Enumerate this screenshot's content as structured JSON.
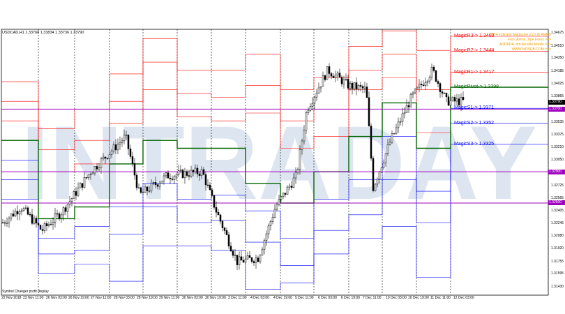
{
  "symbol": "USDCAD,H1  1.33760 1.33834 1.33736 1.33790",
  "status_text": "Symbol Changer profit display",
  "watermark": "INTRADAY",
  "credits": [
    "MT4 Indicator Magazine v3.0 @ AMRS",
    "Fish, Arena, Tipe Forex ==>",
    "ADDADA, dm kenalla Mobile ==>",
    "WWW.MOSEB.COM ==>"
  ],
  "time_labels": [
    "22 Nov 2018",
    "23 Nov 11:00",
    "26 Nov 03:00",
    "26 Nov 19:00",
    "27 Nov 11:00",
    "28 Nov 03:00",
    "28 Nov 19:00",
    "29 Nov 11:00",
    "30 Nov 03:00",
    "30 Nov 19:00",
    "3 Dec 11:00",
    "4 Dec 03:00",
    "4 Dec 19:00",
    "5 Dec 11:00",
    "6 Dec 03:00",
    "6 Dec 19:00",
    "7 Dec 11:00",
    "10 Dec 03:00",
    "10 Dec 19:00",
    "11 Dec 11:00",
    "12 Dec 03:00"
  ],
  "price_labels": [
    "1.34675",
    "1.34510",
    "1.34350",
    "1.34185",
    "1.34025",
    "1.33865",
    "1.33700",
    "1.33535",
    "1.33375",
    "1.33210",
    "1.33050",
    "1.32885",
    "1.32725",
    "1.32565",
    "1.32405",
    "1.32245",
    "1.32080",
    "1.31920",
    "1.31755",
    "1.31595",
    "1.31430"
  ],
  "price_tags": {
    "current": "1.33790",
    "level1": "1.33700",
    "level2": "1.32900",
    "level3": "1.32500"
  },
  "pivot_levels": [
    {
      "label": "MagicR3-> 1.3463",
      "color": "#ff0000",
      "price": 1.3463
    },
    {
      "label": "MagicR2-> 1.3444",
      "color": "#ff0000",
      "price": 1.3444
    },
    {
      "label": "MagicR1-> 1.3417",
      "color": "#ff0000",
      "price": 1.3417
    },
    {
      "label": "MagicPivot-> 1.3398",
      "color": "#006400",
      "price": 1.3398
    },
    {
      "label": "MagicS1-> 1.3371",
      "color": "#0000ff",
      "price": 1.3371
    },
    {
      "label": "MagicS2-> 1.3352",
      "color": "#0000ff",
      "price": 1.3352
    },
    {
      "label": "MagicS3-> 1.3325",
      "color": "#0000ff",
      "price": 1.3325
    }
  ],
  "horizontal_levels": [
    1.337,
    1.329,
    1.325
  ],
  "colors": {
    "resistance": "#ff0000",
    "pivot": "#006400",
    "support": "#0000ff",
    "level_line": "#a000c0",
    "candles": "#000000",
    "watermark": "#dde6f0"
  }
}
